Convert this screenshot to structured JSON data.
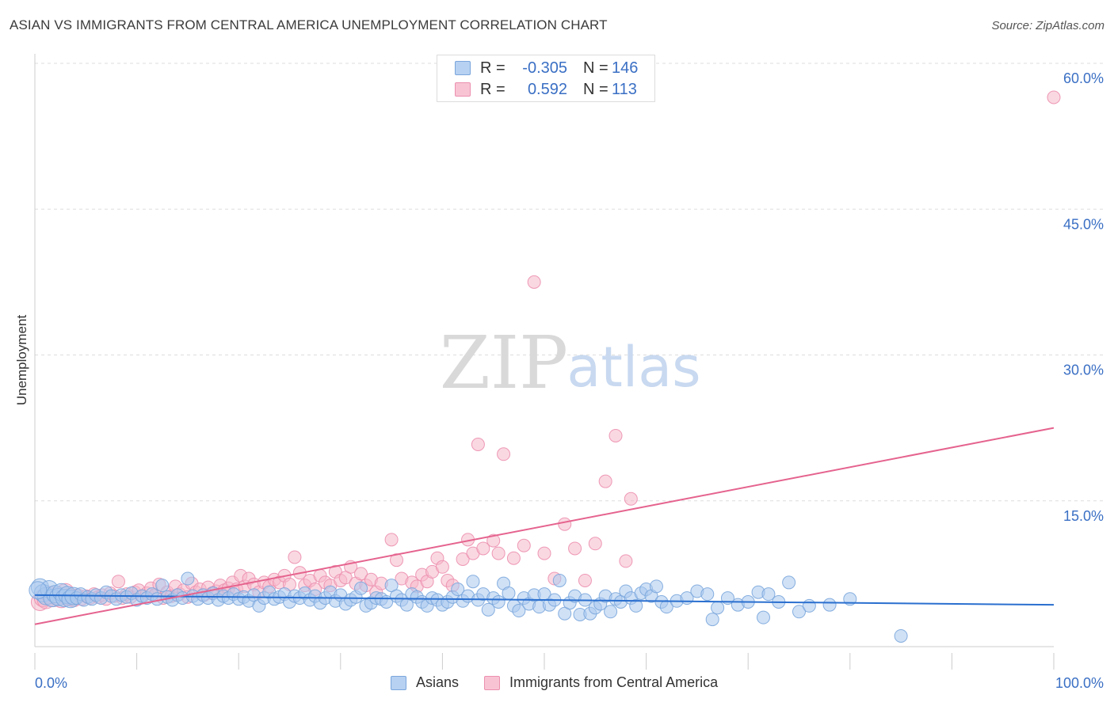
{
  "title": "ASIAN VS IMMIGRANTS FROM CENTRAL AMERICA UNEMPLOYMENT CORRELATION CHART",
  "source": "Source: ZipAtlas.com",
  "watermark": {
    "zip": "ZIP",
    "atlas": "atlas"
  },
  "legend": {
    "rows": [
      {
        "r_label": "R =",
        "r_value": "-0.305",
        "n_label": "N =",
        "n_value": "146"
      },
      {
        "r_label": "R =",
        "r_value": "0.592",
        "n_label": "N =",
        "n_value": "113"
      }
    ]
  },
  "bottom_legend": [
    "Asians",
    "Immigrants from Central America"
  ],
  "colors": {
    "blue_fill": "#a9c8ef",
    "blue_stroke": "#7aa6dc",
    "blue_line": "#2a6fcf",
    "pink_fill": "#f5b8cb",
    "pink_stroke": "#ec8fae",
    "pink_line": "#e5638e",
    "tick_label": "#3a6fc4",
    "grid": "#dddddd"
  },
  "chart_data": {
    "type": "scatter",
    "title": "ASIAN VS IMMIGRANTS FROM CENTRAL AMERICA UNEMPLOYMENT CORRELATION CHART",
    "xlabel": "",
    "ylabel": "Unemployment",
    "xlim": [
      0,
      100
    ],
    "ylim": [
      0,
      62
    ],
    "x_tick_labels": [
      "0.0%",
      "100.0%"
    ],
    "y_ticks": [
      15,
      30,
      45,
      60
    ],
    "y_tick_labels": [
      "15.0%",
      "30.0%",
      "45.0%",
      "60.0%"
    ],
    "grid": true,
    "series": [
      {
        "name": "Asians",
        "r": -0.305,
        "n": 146,
        "trend": {
          "x": [
            0,
            100
          ],
          "y": [
            5.3,
            4.3
          ]
        },
        "points": [
          [
            0.5,
            6.1
          ],
          [
            0.8,
            5.5
          ],
          [
            1.1,
            5.2
          ],
          [
            1.4,
            5.9
          ],
          [
            1.7,
            5.0
          ],
          [
            2.0,
            5.4
          ],
          [
            2.3,
            5.1
          ],
          [
            2.6,
            5.6
          ],
          [
            2.9,
            5.0
          ],
          [
            3.2,
            5.3
          ],
          [
            3.5,
            4.9
          ],
          [
            3.8,
            5.2
          ],
          [
            4.1,
            5.0
          ],
          [
            4.5,
            5.4
          ],
          [
            4.8,
            4.8
          ],
          [
            5.2,
            5.1
          ],
          [
            5.6,
            4.9
          ],
          [
            6.0,
            5.3
          ],
          [
            6.5,
            5.0
          ],
          [
            7.0,
            5.6
          ],
          [
            7.5,
            5.2
          ],
          [
            8.0,
            4.9
          ],
          [
            8.5,
            5.3
          ],
          [
            9.0,
            5.1
          ],
          [
            9.5,
            5.5
          ],
          [
            10.0,
            4.8
          ],
          [
            10.5,
            5.2
          ],
          [
            11.0,
            5.0
          ],
          [
            11.5,
            5.4
          ],
          [
            12.0,
            4.9
          ],
          [
            12.5,
            6.3
          ],
          [
            13.0,
            5.1
          ],
          [
            13.5,
            4.8
          ],
          [
            14.0,
            5.3
          ],
          [
            14.5,
            5.0
          ],
          [
            15.0,
            7.0
          ],
          [
            15.5,
            5.2
          ],
          [
            16.0,
            4.9
          ],
          [
            16.5,
            5.3
          ],
          [
            17.0,
            5.0
          ],
          [
            17.5,
            5.5
          ],
          [
            18.0,
            4.8
          ],
          [
            18.5,
            5.2
          ],
          [
            19.0,
            5.0
          ],
          [
            19.5,
            5.4
          ],
          [
            20.0,
            4.9
          ],
          [
            20.5,
            5.1
          ],
          [
            21.0,
            4.7
          ],
          [
            21.5,
            5.3
          ],
          [
            22.0,
            4.2
          ],
          [
            22.5,
            5.0
          ],
          [
            23.0,
            5.6
          ],
          [
            23.5,
            4.9
          ],
          [
            24.0,
            5.1
          ],
          [
            24.5,
            5.4
          ],
          [
            25.0,
            4.6
          ],
          [
            25.5,
            5.2
          ],
          [
            26.0,
            5.0
          ],
          [
            26.5,
            5.5
          ],
          [
            27.0,
            4.8
          ],
          [
            27.5,
            5.2
          ],
          [
            28.0,
            4.5
          ],
          [
            28.5,
            5.0
          ],
          [
            29.0,
            5.6
          ],
          [
            29.5,
            4.7
          ],
          [
            30.0,
            5.3
          ],
          [
            30.5,
            4.4
          ],
          [
            31.0,
            4.8
          ],
          [
            31.5,
            5.1
          ],
          [
            32.0,
            6.0
          ],
          [
            32.5,
            4.2
          ],
          [
            33.0,
            4.5
          ],
          [
            33.5,
            5.0
          ],
          [
            34.0,
            4.9
          ],
          [
            34.5,
            4.6
          ],
          [
            35.0,
            6.3
          ],
          [
            35.5,
            5.2
          ],
          [
            36.0,
            4.8
          ],
          [
            36.5,
            4.3
          ],
          [
            37.0,
            5.4
          ],
          [
            37.5,
            5.1
          ],
          [
            38.0,
            4.6
          ],
          [
            38.5,
            4.2
          ],
          [
            39.0,
            5.0
          ],
          [
            39.5,
            4.8
          ],
          [
            40.0,
            4.3
          ],
          [
            40.5,
            4.6
          ],
          [
            41.0,
            5.1
          ],
          [
            41.5,
            5.9
          ],
          [
            42.0,
            4.7
          ],
          [
            42.5,
            5.2
          ],
          [
            43.0,
            6.7
          ],
          [
            43.5,
            4.8
          ],
          [
            44.0,
            5.4
          ],
          [
            44.5,
            3.8
          ],
          [
            45.0,
            5.0
          ],
          [
            45.5,
            4.6
          ],
          [
            46.0,
            6.5
          ],
          [
            46.5,
            5.5
          ],
          [
            47.0,
            4.2
          ],
          [
            47.5,
            3.7
          ],
          [
            48.0,
            5.0
          ],
          [
            48.5,
            4.4
          ],
          [
            49.0,
            5.3
          ],
          [
            49.5,
            4.1
          ],
          [
            50.0,
            5.4
          ],
          [
            50.5,
            4.3
          ],
          [
            51.0,
            4.8
          ],
          [
            51.5,
            6.8
          ],
          [
            52.0,
            3.4
          ],
          [
            52.5,
            4.5
          ],
          [
            53.0,
            5.2
          ],
          [
            53.5,
            3.3
          ],
          [
            54.0,
            4.8
          ],
          [
            54.5,
            3.4
          ],
          [
            55.0,
            4.0
          ],
          [
            55.5,
            4.4
          ],
          [
            56.0,
            5.2
          ],
          [
            56.5,
            3.6
          ],
          [
            57.0,
            4.9
          ],
          [
            57.5,
            4.6
          ],
          [
            58.0,
            5.7
          ],
          [
            58.5,
            5.0
          ],
          [
            59.0,
            4.2
          ],
          [
            59.5,
            5.5
          ],
          [
            60.0,
            5.9
          ],
          [
            60.5,
            5.2
          ],
          [
            61.0,
            6.2
          ],
          [
            61.5,
            4.6
          ],
          [
            62.0,
            4.1
          ],
          [
            63.0,
            4.7
          ],
          [
            64.0,
            5.0
          ],
          [
            65.0,
            5.7
          ],
          [
            66.0,
            5.4
          ],
          [
            67.0,
            4.0
          ],
          [
            68.0,
            5.0
          ],
          [
            69.0,
            4.3
          ],
          [
            70.0,
            4.6
          ],
          [
            71.0,
            5.6
          ],
          [
            72.0,
            5.4
          ],
          [
            73.0,
            4.6
          ],
          [
            74.0,
            6.6
          ],
          [
            75.0,
            3.6
          ],
          [
            76.0,
            4.2
          ],
          [
            78.0,
            4.3
          ],
          [
            80.0,
            4.9
          ],
          [
            85.0,
            1.1
          ],
          [
            71.5,
            3.0
          ],
          [
            66.5,
            2.8
          ],
          [
            0.3,
            5.8
          ]
        ]
      },
      {
        "name": "Immigrants from Central America",
        "r": 0.592,
        "n": 113,
        "trend": {
          "x": [
            0,
            100
          ],
          "y": [
            2.3,
            22.5
          ]
        },
        "points": [
          [
            0.5,
            4.6
          ],
          [
            0.8,
            5.0
          ],
          [
            1.1,
            4.8
          ],
          [
            1.5,
            5.3
          ],
          [
            1.8,
            5.0
          ],
          [
            2.2,
            5.2
          ],
          [
            2.6,
            4.9
          ],
          [
            3.0,
            5.6
          ],
          [
            3.4,
            5.1
          ],
          [
            3.8,
            5.0
          ],
          [
            4.2,
            5.3
          ],
          [
            4.6,
            4.9
          ],
          [
            5.0,
            5.2
          ],
          [
            5.4,
            5.0
          ],
          [
            5.8,
            5.4
          ],
          [
            6.2,
            5.1
          ],
          [
            6.6,
            5.3
          ],
          [
            7.0,
            4.9
          ],
          [
            7.4,
            5.5
          ],
          [
            7.8,
            5.2
          ],
          [
            8.2,
            6.7
          ],
          [
            8.6,
            5.0
          ],
          [
            9.0,
            5.4
          ],
          [
            9.4,
            5.1
          ],
          [
            9.8,
            5.6
          ],
          [
            10.2,
            5.8
          ],
          [
            10.6,
            5.2
          ],
          [
            11.0,
            5.5
          ],
          [
            11.4,
            6.0
          ],
          [
            11.8,
            5.3
          ],
          [
            12.2,
            6.4
          ],
          [
            12.6,
            5.0
          ],
          [
            13.0,
            5.6
          ],
          [
            13.4,
            5.2
          ],
          [
            13.8,
            6.2
          ],
          [
            14.2,
            5.4
          ],
          [
            14.6,
            5.8
          ],
          [
            15.0,
            5.1
          ],
          [
            15.4,
            6.5
          ],
          [
            15.8,
            5.6
          ],
          [
            16.2,
            5.9
          ],
          [
            16.6,
            5.3
          ],
          [
            17.0,
            6.1
          ],
          [
            17.4,
            5.5
          ],
          [
            17.8,
            5.7
          ],
          [
            18.2,
            6.3
          ],
          [
            18.6,
            5.8
          ],
          [
            19.0,
            6.0
          ],
          [
            19.4,
            6.6
          ],
          [
            19.8,
            5.9
          ],
          [
            20.2,
            7.3
          ],
          [
            20.6,
            6.2
          ],
          [
            21.0,
            7.0
          ],
          [
            21.5,
            6.4
          ],
          [
            22.0,
            5.6
          ],
          [
            22.5,
            6.6
          ],
          [
            23.0,
            6.2
          ],
          [
            23.5,
            6.9
          ],
          [
            24.0,
            6.6
          ],
          [
            24.5,
            7.3
          ],
          [
            25.0,
            6.4
          ],
          [
            25.5,
            9.2
          ],
          [
            26.0,
            7.6
          ],
          [
            26.5,
            6.3
          ],
          [
            27.0,
            6.8
          ],
          [
            27.5,
            5.9
          ],
          [
            28.0,
            7.3
          ],
          [
            28.5,
            6.6
          ],
          [
            29.0,
            6.3
          ],
          [
            29.5,
            7.7
          ],
          [
            30.0,
            6.8
          ],
          [
            30.5,
            7.1
          ],
          [
            31.0,
            8.2
          ],
          [
            31.5,
            6.5
          ],
          [
            32.0,
            7.5
          ],
          [
            32.5,
            6.3
          ],
          [
            33.0,
            6.9
          ],
          [
            33.5,
            5.6
          ],
          [
            34.0,
            6.5
          ],
          [
            35.0,
            11.0
          ],
          [
            35.5,
            8.9
          ],
          [
            36.0,
            7.0
          ],
          [
            37.0,
            6.6
          ],
          [
            37.5,
            6.2
          ],
          [
            38.0,
            7.4
          ],
          [
            38.5,
            6.7
          ],
          [
            39.0,
            7.7
          ],
          [
            39.5,
            9.1
          ],
          [
            40.0,
            8.2
          ],
          [
            40.5,
            6.8
          ],
          [
            41.0,
            6.3
          ],
          [
            42.0,
            9.0
          ],
          [
            42.5,
            11.0
          ],
          [
            43.0,
            9.6
          ],
          [
            43.5,
            20.8
          ],
          [
            44.0,
            10.1
          ],
          [
            45.0,
            10.9
          ],
          [
            45.5,
            9.6
          ],
          [
            46.0,
            19.8
          ],
          [
            47.0,
            9.1
          ],
          [
            48.0,
            10.4
          ],
          [
            49.0,
            37.5
          ],
          [
            50.0,
            9.6
          ],
          [
            51.0,
            7.0
          ],
          [
            52.0,
            12.6
          ],
          [
            53.0,
            10.1
          ],
          [
            54.0,
            6.8
          ],
          [
            55.0,
            10.6
          ],
          [
            56.0,
            17.0
          ],
          [
            57.0,
            21.7
          ],
          [
            58.0,
            8.8
          ],
          [
            58.5,
            15.2
          ],
          [
            100,
            56.5
          ]
        ]
      }
    ]
  }
}
